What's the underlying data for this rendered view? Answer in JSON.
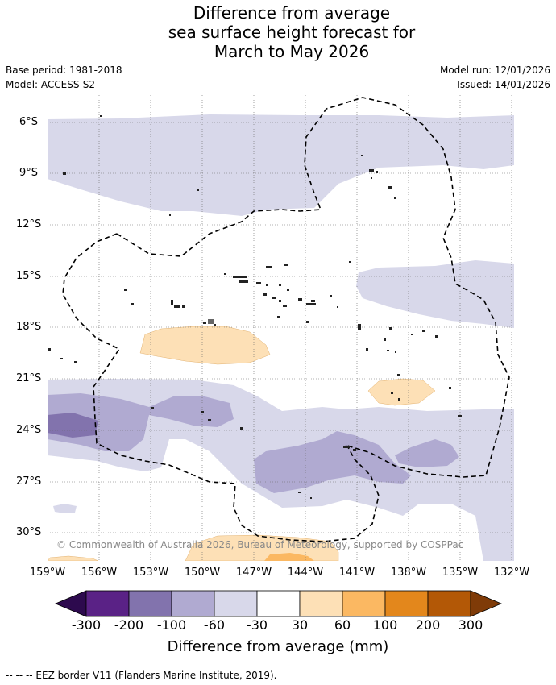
{
  "header": {
    "title_lines": [
      "Difference from average",
      "sea surface height forecast for",
      "March to May 2026"
    ],
    "base_period": "Base period: 1981-2018",
    "model": "Model: ACCESS-S2",
    "model_run": "Model run: 12/01/2026",
    "issued": "Issued: 14/01/2026"
  },
  "map": {
    "lat_labels": [
      "6°S",
      "9°S",
      "12°S",
      "15°S",
      "18°S",
      "21°S",
      "24°S",
      "27°S",
      "30°S"
    ],
    "lon_labels": [
      "159°W",
      "156°W",
      "153°W",
      "150°W",
      "147°W",
      "144°W",
      "141°W",
      "138°W",
      "135°W",
      "132°W"
    ],
    "copyright": "© Commonwealth of Australia 2026, Bureau of Meteorology, supported by COSPPac"
  },
  "colorbar": {
    "title": "Difference from average (mm)",
    "ticks": [
      "-300",
      "-200",
      "-100",
      "-60",
      "-30",
      "30",
      "60",
      "100",
      "200",
      "300"
    ],
    "colors": [
      "#2d0a4e",
      "#5a2286",
      "#8273ad",
      "#b0aad1",
      "#d8d8ea",
      "#ffffff",
      "#fde0b6",
      "#fbb862",
      "#e3871c",
      "#b35806",
      "#7f3b08"
    ]
  },
  "footnote": "--  --  -- EEZ border V11 (Flanders Marine Institute, 2019)."
}
